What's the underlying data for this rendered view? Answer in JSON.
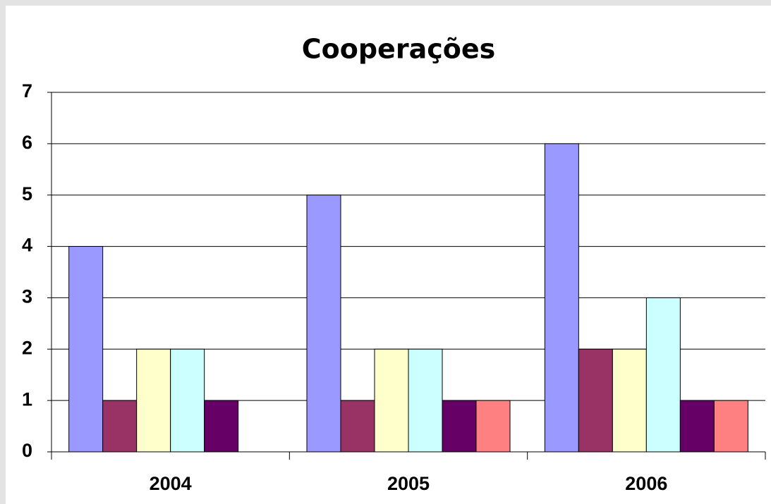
{
  "chart_data": {
    "type": "bar",
    "title": "Cooperações",
    "categories": [
      "2004",
      "2005",
      "2006"
    ],
    "series": [
      {
        "color": "#9999ff",
        "values": [
          4,
          5,
          6
        ]
      },
      {
        "color": "#993366",
        "values": [
          1,
          1,
          2
        ]
      },
      {
        "color": "#ffffcc",
        "values": [
          2,
          2,
          2
        ]
      },
      {
        "color": "#ccffff",
        "values": [
          2,
          2,
          3
        ]
      },
      {
        "color": "#660066",
        "values": [
          1,
          1,
          1
        ]
      },
      {
        "color": "#ff8080",
        "values": [
          0,
          1,
          1
        ]
      }
    ],
    "ylim": [
      0,
      7
    ],
    "yticks": [
      0,
      1,
      2,
      3,
      4,
      5,
      6,
      7
    ],
    "grid": true
  }
}
